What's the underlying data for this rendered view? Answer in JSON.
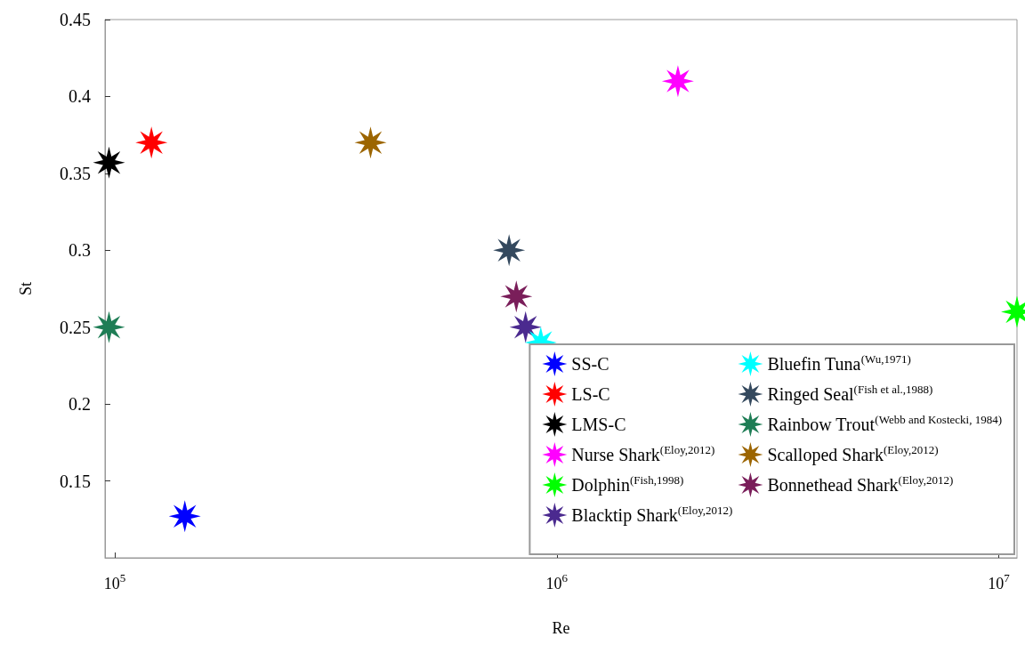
{
  "chart_data": {
    "type": "scatter",
    "xlabel": "Re",
    "ylabel": "St",
    "log": "x",
    "xlim": [
      95000,
      11000000
    ],
    "xticks": [
      {
        "value": 100000,
        "label": "10$^{5}$"
      },
      {
        "value": 1000000,
        "label": "10$^{6}$"
      },
      {
        "value": 10000000,
        "label": "10$^{7}$"
      }
    ],
    "ylim": [
      0.1,
      0.45
    ],
    "yticks": [
      0.15,
      0.2,
      0.25,
      0.3,
      0.35,
      0.4,
      0.45
    ],
    "grid": false,
    "legend": "bottom right",
    "marker": "star",
    "series": [
      {
        "name": "SS-C",
        "color": "#0000ff",
        "x": [
          144000
        ],
        "values": [
          0.127
        ]
      },
      {
        "name": "LS-C",
        "color": "#ff0000",
        "x": [
          121000
        ],
        "values": [
          0.37
        ]
      },
      {
        "name": "LMS-C",
        "color": "#000000",
        "x": [
          97000
        ],
        "values": [
          0.357
        ]
      },
      {
        "name": "Nurse Shark$^{(Eloy,2012)}$",
        "color": "#ff00ff",
        "x": [
          1880000
        ],
        "values": [
          0.41
        ]
      },
      {
        "name": "Dolphin$^{(Fish,1998)}$",
        "color": "#00ff00",
        "x": [
          11000000
        ],
        "values": [
          0.26
        ]
      },
      {
        "name": "Blacktip Shark$^{(Eloy,2012)}$",
        "color": "#4b2a8f",
        "x": [
          850000
        ],
        "values": [
          0.25
        ]
      },
      {
        "name": "Bluefin Tuna$^{(Wu,1971)}$",
        "color": "#00ffff",
        "x": [
          920000
        ],
        "values": [
          0.24
        ]
      },
      {
        "name": "Ringed Seal$^{(Fish et al.,1988)}$",
        "color": "#34495e",
        "x": [
          780000
        ],
        "values": [
          0.3
        ]
      },
      {
        "name": "Rainbow Trout$^{(Webb and Kostecki, 1984)}$",
        "color": "#1e7d55",
        "x": [
          97000
        ],
        "values": [
          0.25
        ]
      },
      {
        "name": "Scalloped Shark$^{(Eloy,2012)}$",
        "color": "#9c6500",
        "x": [
          379000
        ],
        "values": [
          0.37
        ]
      },
      {
        "name": "Bonnethead Shark$^{(Eloy,2012)}$",
        "color": "#7a1e5a",
        "x": [
          810000
        ],
        "values": [
          0.27
        ]
      }
    ]
  }
}
